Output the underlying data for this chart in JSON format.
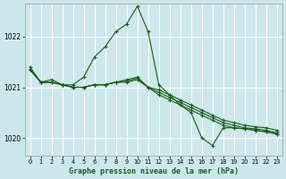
{
  "title": "Graphe pression niveau de la mer (hPa)",
  "bg_color": "#cde8ec",
  "grid_color": "#ffffff",
  "line_color": "#1a5c1a",
  "xlim": [
    -0.5,
    23.5
  ],
  "ylim": [
    1019.65,
    1022.65
  ],
  "yticks": [
    1020,
    1021,
    1022
  ],
  "xticks": [
    0,
    1,
    2,
    3,
    4,
    5,
    6,
    7,
    8,
    9,
    10,
    11,
    12,
    13,
    14,
    15,
    16,
    17,
    18,
    19,
    20,
    21,
    22,
    23
  ],
  "series": [
    [
      1021.35,
      1021.1,
      1021.1,
      1021.05,
      1021.0,
      1021.0,
      1021.05,
      1021.05,
      1021.1,
      1021.15,
      1021.2,
      1021.0,
      1020.95,
      1020.85,
      1020.75,
      1020.65,
      1020.55,
      1020.45,
      1020.35,
      1020.3,
      1020.25,
      1020.22,
      1020.2,
      1020.15
    ],
    [
      1021.35,
      1021.1,
      1021.1,
      1021.05,
      1021.0,
      1021.0,
      1021.05,
      1021.05,
      1021.1,
      1021.1,
      1021.15,
      1021.0,
      1020.9,
      1020.8,
      1020.7,
      1020.6,
      1020.5,
      1020.4,
      1020.3,
      1020.25,
      1020.2,
      1020.18,
      1020.15,
      1020.1
    ],
    [
      1021.35,
      1021.1,
      1021.1,
      1021.05,
      1021.0,
      1021.0,
      1021.05,
      1021.05,
      1021.1,
      1021.12,
      1021.18,
      1021.0,
      1020.85,
      1020.75,
      1020.65,
      1020.55,
      1020.45,
      1020.35,
      1020.25,
      1020.2,
      1020.18,
      1020.15,
      1020.12,
      1020.08
    ],
    [
      1021.4,
      1021.1,
      1021.15,
      1021.05,
      1021.05,
      1021.2,
      1021.6,
      1021.8,
      1022.1,
      1022.25,
      1022.6,
      1022.1,
      1021.05,
      1020.85,
      1020.65,
      1020.5,
      1020.0,
      1019.85,
      1020.2,
      1020.2,
      1020.18,
      1020.15,
      1020.12,
      1020.08
    ]
  ]
}
